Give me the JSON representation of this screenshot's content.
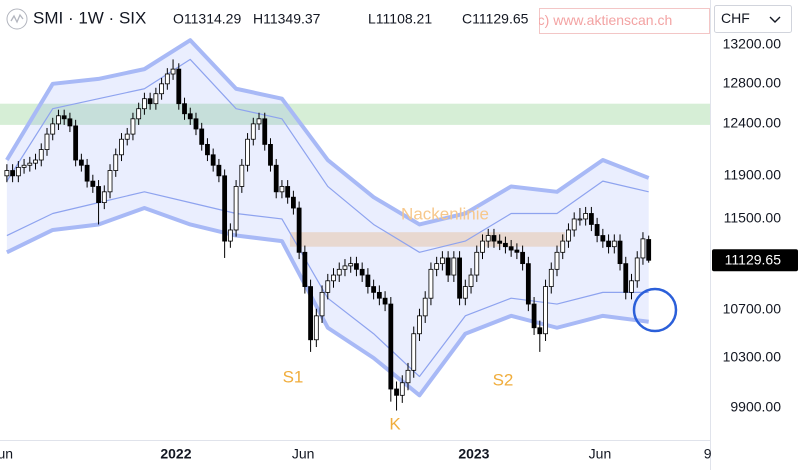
{
  "header": {
    "symbol": "SMI · 1W · SIX",
    "ohlc": [
      "O11314.29",
      "H11349.37",
      "L11108.21",
      "C11129.65"
    ],
    "watermark": "(c) www.aktienscan.ch",
    "currency": "CHF"
  },
  "chart_data": {
    "type": "candlestick",
    "log_y": true,
    "ylim": [
      9652,
      13379
    ],
    "yticks": [
      {
        "value": 13200,
        "label": "13200.00"
      },
      {
        "value": 12800,
        "label": "12800.00"
      },
      {
        "value": 12400,
        "label": "12400.00"
      },
      {
        "value": 11900,
        "label": "11900.00"
      },
      {
        "value": 11500,
        "label": "11500.00"
      },
      {
        "value": 10700,
        "label": "10700.00"
      },
      {
        "value": 10300,
        "label": "10300.00"
      },
      {
        "value": 9900,
        "label": "9900.00"
      }
    ],
    "xlim": [
      -1.2,
      122.7
    ],
    "xticks": [
      {
        "value": -0.9,
        "label": "Jun"
      },
      {
        "value": 29.5,
        "label": "2022"
      },
      {
        "value": 51.7,
        "label": "Jun"
      },
      {
        "value": 81.5,
        "label": "2023"
      },
      {
        "value": 103.5,
        "label": "Jun"
      },
      {
        "value": 122.3,
        "label": "9"
      }
    ],
    "up_color": "#ffffff",
    "down_color": "#000000",
    "wick_color": "#000000",
    "open": [
      11900,
      11950,
      11900,
      11980,
      12000,
      12020,
      12050,
      12150,
      12300,
      12400,
      12480,
      12450,
      12380,
      12050,
      12000,
      11850,
      11800,
      11650,
      11750,
      11950,
      12100,
      12250,
      12300,
      12450,
      12550,
      12650,
      12600,
      12700,
      12800,
      12900,
      12950,
      12600,
      12500,
      12450,
      12350,
      12200,
      12100,
      12000,
      11900,
      11300,
      11400,
      11800,
      12000,
      12250,
      12400,
      12450,
      12200,
      12000,
      11750,
      11800,
      11700,
      11600,
      11200,
      10900,
      10450,
      10650,
      10850,
      10950,
      11000,
      11050,
      11080,
      11100,
      11050,
      11000,
      10900,
      10850,
      10800,
      10750,
      10050,
      10000,
      10100,
      10200,
      10500,
      10650,
      10800,
      11050,
      11100,
      11150,
      11000,
      11150,
      10800,
      10900,
      11000,
      11200,
      11300,
      11350,
      11300,
      11280,
      11250,
      11220,
      11200,
      11100,
      10750,
      10550,
      10500,
      10900,
      11050,
      11200,
      11300,
      11400,
      11500,
      11500,
      11550,
      11450,
      11350,
      11300,
      11250,
      11300,
      11100,
      10850,
      10950,
      11150,
      11314.29
    ],
    "high": [
      12010,
      12010,
      12040,
      12060,
      12080,
      12110,
      12210,
      12360,
      12460,
      12540,
      12540,
      12510,
      12440,
      12110,
      12060,
      11910,
      11860,
      11810,
      12010,
      12160,
      12310,
      12360,
      12510,
      12610,
      12710,
      12710,
      12760,
      12860,
      12960,
      13050,
      13010,
      12660,
      12560,
      12510,
      12410,
      12260,
      12160,
      12060,
      11960,
      11460,
      11860,
      12060,
      12310,
      12460,
      12510,
      12510,
      12260,
      12060,
      11860,
      11860,
      11760,
      11660,
      11260,
      10960,
      10710,
      10910,
      11010,
      11060,
      11110,
      11140,
      11160,
      11160,
      11110,
      11060,
      10960,
      10910,
      10860,
      10810,
      10110,
      10160,
      10260,
      10560,
      10710,
      10860,
      11110,
      11160,
      11210,
      11210,
      11210,
      11210,
      10960,
      11060,
      11260,
      11360,
      11410,
      11410,
      11360,
      11340,
      11310,
      11280,
      11260,
      11160,
      10810,
      10610,
      10960,
      11110,
      11260,
      11360,
      11460,
      11560,
      11600,
      11610,
      11610,
      11510,
      11410,
      11360,
      11360,
      11360,
      11160,
      11010,
      11210,
      11380,
      11349.37
    ],
    "low": [
      11840,
      11840,
      11840,
      11920,
      11940,
      11960,
      11990,
      12090,
      12240,
      12340,
      12390,
      12320,
      11990,
      11940,
      11790,
      11740,
      11450,
      11590,
      11690,
      11890,
      12040,
      12190,
      12240,
      12390,
      12490,
      12540,
      12540,
      12640,
      12740,
      12840,
      12540,
      12440,
      12390,
      12290,
      12140,
      12040,
      11940,
      11840,
      11150,
      11240,
      11340,
      11740,
      11940,
      12190,
      12340,
      12140,
      11940,
      11690,
      11690,
      11640,
      11540,
      11140,
      10840,
      10350,
      10390,
      10590,
      10790,
      10890,
      10940,
      10990,
      11020,
      10990,
      10940,
      10840,
      10790,
      10740,
      10690,
      9950,
      9880,
      9940,
      10040,
      10140,
      10440,
      10590,
      10740,
      10990,
      11040,
      10940,
      10940,
      10740,
      10740,
      10840,
      10940,
      11140,
      11240,
      11240,
      11220,
      11190,
      11160,
      11140,
      11040,
      10690,
      10490,
      10350,
      10440,
      10840,
      10990,
      11140,
      11240,
      11340,
      11440,
      11440,
      11390,
      11290,
      11240,
      11190,
      11190,
      11040,
      10790,
      10790,
      10890,
      11090,
      11108.21
    ],
    "close": [
      11950,
      11900,
      11980,
      12000,
      12020,
      12050,
      12150,
      12300,
      12400,
      12480,
      12450,
      12380,
      12050,
      12000,
      11850,
      11800,
      11650,
      11750,
      11950,
      12100,
      12250,
      12300,
      12450,
      12550,
      12650,
      12600,
      12700,
      12800,
      12900,
      12950,
      12600,
      12500,
      12450,
      12350,
      12200,
      12100,
      12000,
      11900,
      11300,
      11400,
      11800,
      12000,
      12250,
      12400,
      12450,
      12200,
      12000,
      11750,
      11800,
      11700,
      11600,
      11200,
      10900,
      10450,
      10650,
      10850,
      10950,
      11000,
      11050,
      11080,
      11100,
      11050,
      11000,
      10900,
      10850,
      10800,
      10750,
      10050,
      10000,
      10100,
      10200,
      10500,
      10650,
      10800,
      11050,
      11100,
      11150,
      11000,
      11150,
      10800,
      10900,
      11000,
      11200,
      11300,
      11350,
      11300,
      11280,
      11250,
      11220,
      11200,
      11100,
      10750,
      10550,
      10500,
      10900,
      11050,
      11200,
      11300,
      11400,
      11500,
      11500,
      11550,
      11450,
      11350,
      11300,
      11250,
      11300,
      11100,
      10850,
      10950,
      11150,
      11320,
      11129.65
    ],
    "bands": {
      "x": [
        0,
        8,
        16,
        24,
        32,
        40,
        48,
        56,
        64,
        72,
        80,
        88,
        96,
        104,
        112
      ],
      "fill_color": "rgba(95,125,245,0.13)",
      "lines": [
        {
          "color": "#a8b9f6",
          "values": [
            12050,
            12800,
            12850,
            12950,
            13250,
            12750,
            12650,
            12050,
            11700,
            11450,
            11550,
            11800,
            11750,
            12050,
            11880
          ]
        },
        {
          "color": "#8ea3ef",
          "values": [
            11850,
            12550,
            12650,
            12750,
            13050,
            12550,
            12450,
            11800,
            11450,
            11200,
            11300,
            11550,
            11550,
            11850,
            11750
          ]
        },
        {
          "color": "#8ea3ef",
          "values": [
            11350,
            11550,
            11650,
            11750,
            11650,
            11550,
            11500,
            10800,
            10500,
            10150,
            10650,
            10800,
            10750,
            10850,
            10850
          ]
        },
        {
          "color": "#a8b9f6",
          "values": [
            11200,
            11400,
            11450,
            11600,
            11450,
            11350,
            11300,
            10550,
            10300,
            10000,
            10500,
            10650,
            10550,
            10650,
            10600
          ]
        }
      ]
    },
    "zones": [
      {
        "range": [
          12390,
          12600
        ],
        "x": [
          -1.2,
          122.7
        ],
        "color": "rgba(120,200,120,0.3)"
      },
      {
        "range": [
          11250,
          11380
        ],
        "x": [
          49.4,
          97.4
        ],
        "color": "rgba(250,200,140,0.45)"
      }
    ],
    "annotations": [
      "Nackenlinie",
      "S1",
      "K",
      "S2"
    ],
    "annotation_colors": [
      "#f7c88c",
      "#f0ad3c",
      "#f0ad3c",
      "#f0ad3c"
    ],
    "last_price_color": "#000000"
  }
}
